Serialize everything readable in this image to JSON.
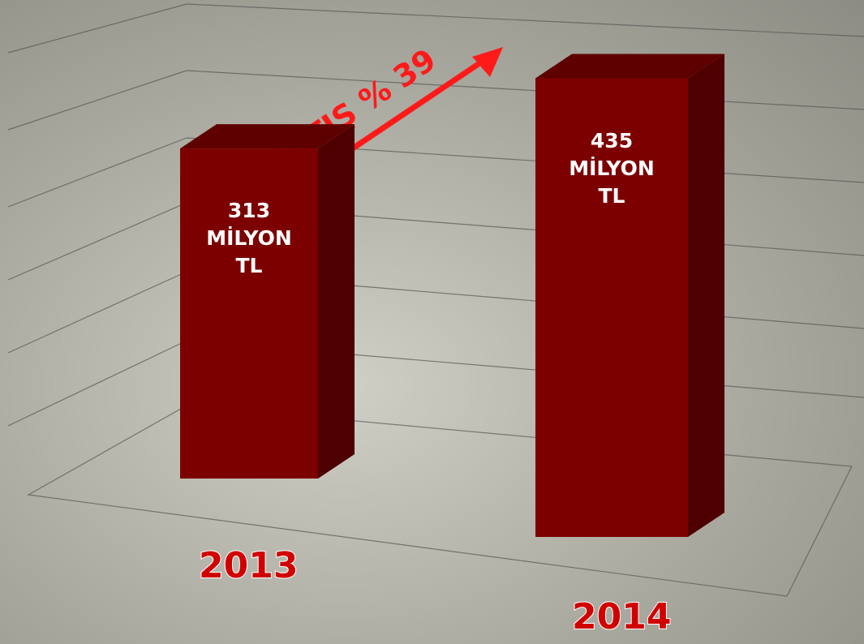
{
  "chart_data": {
    "type": "bar",
    "categories": [
      "2013",
      "2014"
    ],
    "values": [
      313,
      435
    ],
    "value_labels": [
      "313 MİLYON TL",
      "435 MİLYON TL"
    ],
    "color": "#7d0000",
    "annotation": "ARTIŞ % 39"
  }
}
